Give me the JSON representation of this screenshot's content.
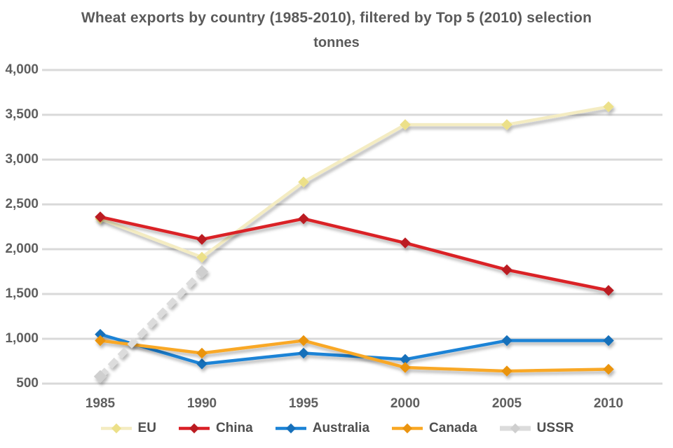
{
  "title": {
    "line1": "Wheat exports by country (1985-2010), filtered by Top 5 (2010) selection",
    "line2": "tonnes"
  },
  "colors": {
    "grid": "#d9d9d9",
    "axis_text": "#5f5f5f",
    "title_text": "#5a5a5a",
    "background": "#ffffff"
  },
  "chart_data": {
    "type": "line",
    "title": "Wheat exports by country (1985-2010), filtered by Top 5 (2010) selection",
    "subtitle_unit": "tonnes",
    "x_categories": [
      "1985",
      "1990",
      "1995",
      "2000",
      "2005",
      "2010"
    ],
    "y_axis": {
      "min": 500,
      "max": 4000,
      "step": 500,
      "tick_labels": [
        "4,000",
        "3,500",
        "3,000",
        "2,500",
        "2,000",
        "1,500",
        "1,000",
        "500"
      ]
    },
    "grid": true,
    "legend_position": "bottom",
    "series": [
      {
        "name": "EU",
        "color": "#f4ecc2",
        "marker_color": "#ece089",
        "dashed": false,
        "thick": false,
        "values": [
          2340,
          1910,
          2750,
          3390,
          3390,
          3590
        ]
      },
      {
        "name": "China",
        "color": "#da2128",
        "marker_color": "#bb1b21",
        "dashed": false,
        "thick": false,
        "values": [
          2360,
          2110,
          2340,
          2070,
          1770,
          1540
        ]
      },
      {
        "name": "Australia",
        "color": "#1c83d6",
        "marker_color": "#1770ba",
        "dashed": false,
        "thick": false,
        "values": [
          1050,
          720,
          840,
          770,
          980,
          980
        ]
      },
      {
        "name": "Canada",
        "color": "#f9a825",
        "marker_color": "#ea9410",
        "dashed": false,
        "thick": false,
        "values": [
          980,
          840,
          980,
          680,
          640,
          660
        ]
      },
      {
        "name": "USSR",
        "color": "#dcdcdc",
        "marker_color": "#cfcfcf",
        "dashed": true,
        "thick": true,
        "values": [
          580,
          1750,
          null,
          null,
          null,
          null
        ]
      }
    ]
  }
}
